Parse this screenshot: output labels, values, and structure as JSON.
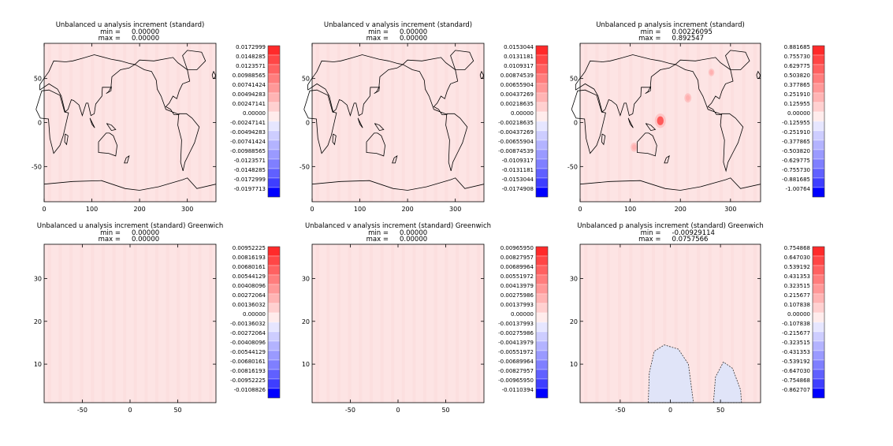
{
  "figure": {
    "colors": {
      "field_background": "#fde4e4",
      "negative_region": "#e0e4f8",
      "coast": "#000000"
    }
  },
  "chart_data": [
    {
      "type": "heatmap",
      "id": "u-map",
      "title": "Unbalanced u analysis increment (standard)",
      "stats": [
        {
          "label": "min =",
          "value": "0.00000"
        },
        {
          "label": "max =",
          "value": "0.00000"
        }
      ],
      "x_ticks": [
        "0",
        "100",
        "200",
        "300"
      ],
      "y_ticks": [
        "50",
        "0",
        "-50"
      ],
      "xlim": [
        0,
        360
      ],
      "ylim": [
        -90,
        90
      ],
      "colorbar": [
        "0.0172999",
        "0.0148285",
        "0.0123571",
        "0.00988565",
        "0.00741424",
        "0.00494283",
        "0.00247141",
        "0.00000",
        "-0.00247141",
        "-0.00494283",
        "-0.00741424",
        "-0.00988565",
        "-0.0123571",
        "-0.0148285",
        "-0.0172999",
        "-0.0197713"
      ],
      "map": true,
      "blobs": []
    },
    {
      "type": "heatmap",
      "id": "v-map",
      "title": "Unbalanced v analysis increment (standard)",
      "stats": [
        {
          "label": "min =",
          "value": "0.00000"
        },
        {
          "label": "max =",
          "value": "0.00000"
        }
      ],
      "x_ticks": [
        "0",
        "100",
        "200",
        "300"
      ],
      "y_ticks": [
        "50",
        "0",
        "-50"
      ],
      "xlim": [
        0,
        360
      ],
      "ylim": [
        -90,
        90
      ],
      "colorbar": [
        "0.0153044",
        "0.0131181",
        "0.0109317",
        "0.00874539",
        "0.00655904",
        "0.00437269",
        "0.00218635",
        "0.00000",
        "-0.00218635",
        "-0.00437269",
        "-0.00655904",
        "-0.00874539",
        "-0.0109317",
        "-0.0131181",
        "-0.0153044",
        "-0.0174908"
      ],
      "map": true,
      "blobs": []
    },
    {
      "type": "heatmap",
      "id": "p-map",
      "title": "Unbalanced p analysis increment (standard)",
      "stats": [
        {
          "label": "min =",
          "value": "0.00226095"
        },
        {
          "label": "max =",
          "value": "0.892547"
        }
      ],
      "x_ticks": [
        "0",
        "100",
        "200",
        "300"
      ],
      "y_ticks": [
        "50",
        "0",
        "-50"
      ],
      "xlim": [
        0,
        360
      ],
      "ylim": [
        -90,
        90
      ],
      "colorbar": [
        "0.881685",
        "0.755730",
        "0.629775",
        "0.503820",
        "0.377865",
        "0.251910",
        "0.125955",
        "0.00000",
        "-0.125955",
        "-0.251910",
        "-0.377865",
        "-0.503820",
        "-0.629775",
        "-0.755730",
        "-0.881685",
        "-1.00764"
      ],
      "map": true,
      "blobs": [
        {
          "lon": 160,
          "lat": 2,
          "value": 0.8
        },
        {
          "lon": 215,
          "lat": 28,
          "value": 0.3
        },
        {
          "lon": 108,
          "lat": -28,
          "value": 0.3
        },
        {
          "lon": 262,
          "lat": 57,
          "value": 0.15
        }
      ]
    },
    {
      "type": "heatmap",
      "id": "u-greenwich",
      "title": "Unbalanced u analysis increment (standard) Greenwich",
      "stats": [
        {
          "label": "min =",
          "value": "0.00000"
        },
        {
          "label": "max =",
          "value": "0.00000"
        }
      ],
      "x_ticks": [
        "-50",
        "0",
        "50"
      ],
      "y_ticks": [
        "30",
        "20",
        "10"
      ],
      "xlim": [
        -90,
        90
      ],
      "ylim": [
        1,
        38
      ],
      "colorbar": [
        "0.00952225",
        "0.00816193",
        "0.00680161",
        "0.00544129",
        "0.00408096",
        "0.00272064",
        "0.00136032",
        "0.00000",
        "-0.00136032",
        "-0.00272064",
        "-0.00408096",
        "-0.00544129",
        "-0.00680161",
        "-0.00816193",
        "-0.00952225",
        "-0.0108826"
      ],
      "map": false,
      "regions": []
    },
    {
      "type": "heatmap",
      "id": "v-greenwich",
      "title": "Unbalanced v analysis increment (standard) Greenwich",
      "stats": [
        {
          "label": "min =",
          "value": "0.00000"
        },
        {
          "label": "max =",
          "value": "0.00000"
        }
      ],
      "x_ticks": [
        "-50",
        "0",
        "50"
      ],
      "y_ticks": [
        "30",
        "20",
        "10"
      ],
      "xlim": [
        -90,
        90
      ],
      "ylim": [
        1,
        38
      ],
      "colorbar": [
        "0.00965950",
        "0.00827957",
        "0.00689964",
        "0.00551972",
        "0.00413979",
        "0.00275986",
        "0.00137993",
        "0.00000",
        "-0.00137993",
        "-0.00275986",
        "-0.00413979",
        "-0.00551972",
        "-0.00689964",
        "-0.00827957",
        "-0.00965950",
        "-0.0110394"
      ],
      "map": false,
      "regions": []
    },
    {
      "type": "heatmap",
      "id": "p-greenwich",
      "title": "Unbalanced p analysis increment (standard) Greenwich",
      "stats": [
        {
          "label": "min =",
          "value": "-0.00929114"
        },
        {
          "label": "max =",
          "value": "0.0757566"
        }
      ],
      "x_ticks": [
        "-50",
        "0",
        "50"
      ],
      "y_ticks": [
        "30",
        "20",
        "10"
      ],
      "xlim": [
        -90,
        90
      ],
      "ylim": [
        1,
        38
      ],
      "colorbar": [
        "0.754868",
        "0.647030",
        "0.539192",
        "0.431353",
        "0.323515",
        "0.215677",
        "0.107838",
        "0.00000",
        "-0.107838",
        "-0.215677",
        "-0.323515",
        "-0.431353",
        "-0.539192",
        "-0.647030",
        "-0.754868",
        "-0.862707"
      ],
      "map": false,
      "regions": [
        {
          "sign": "negative",
          "outline": [
            [
              -22,
              1
            ],
            [
              -21,
              8
            ],
            [
              -16,
              13
            ],
            [
              -6,
              14.5
            ],
            [
              8,
              13.5
            ],
            [
              18,
              10
            ],
            [
              23,
              1
            ]
          ]
        },
        {
          "sign": "negative",
          "outline": [
            [
              43,
              1
            ],
            [
              45,
              7
            ],
            [
              53,
              10.5
            ],
            [
              62,
              9
            ],
            [
              70,
              4
            ],
            [
              71,
              1
            ]
          ]
        }
      ]
    }
  ]
}
